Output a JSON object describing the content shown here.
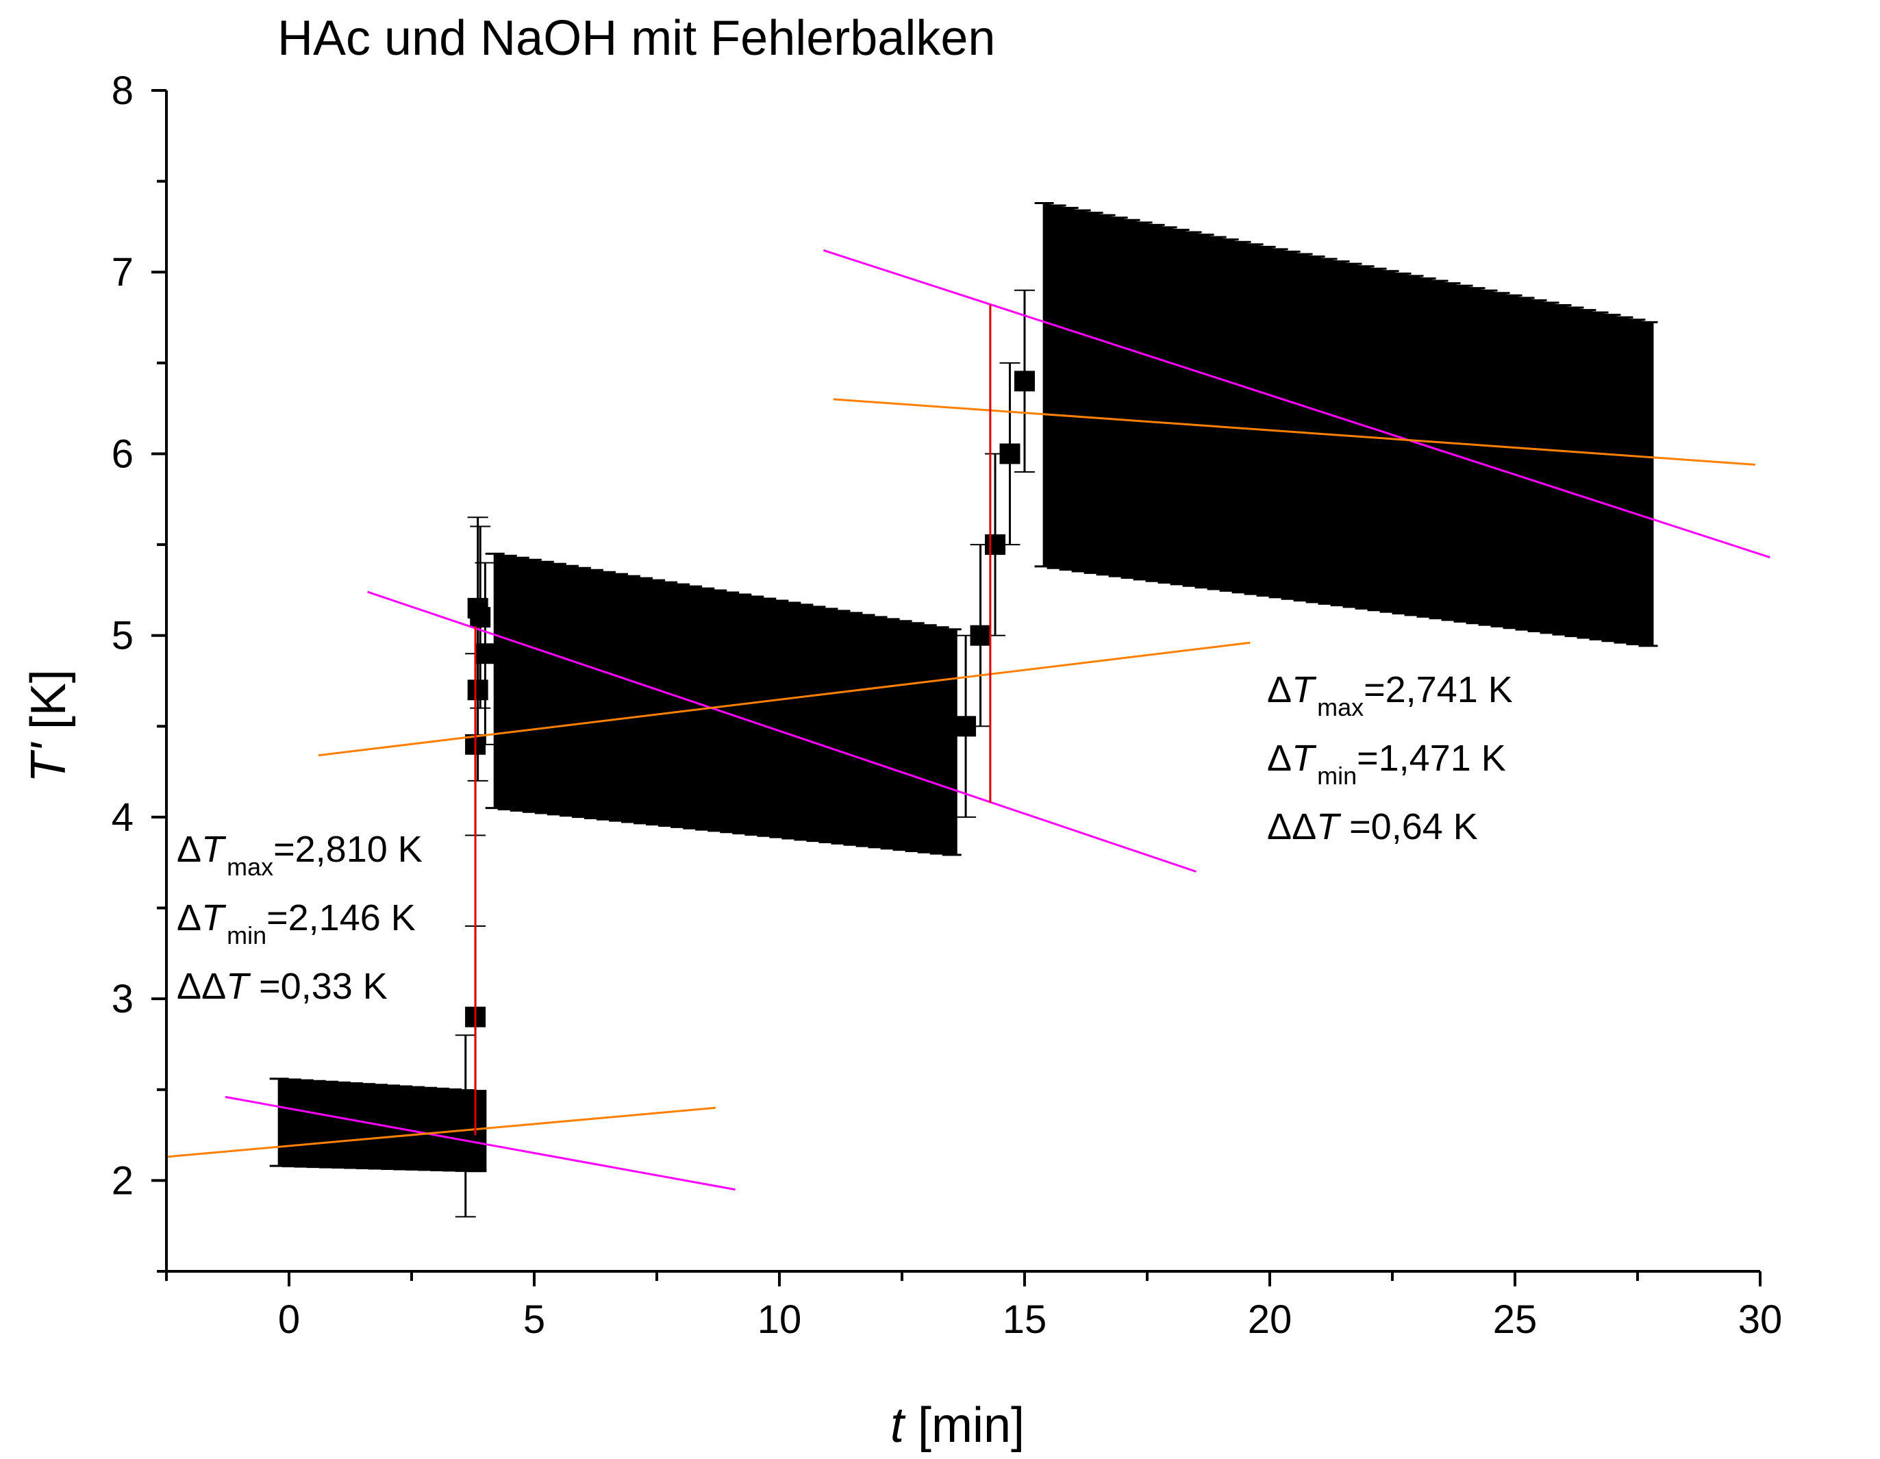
{
  "chart_data": {
    "type": "scatter",
    "title": "HAc und NaOH mit Fehlerbalken",
    "xlabel": {
      "var": "t",
      "unit": " [min]"
    },
    "ylabel": {
      "var": "T'",
      "unit": " [K]"
    },
    "xlim": [
      -2.5,
      30
    ],
    "ylim": [
      1.5,
      8
    ],
    "xticks": [
      0,
      5,
      10,
      15,
      20,
      25,
      30
    ],
    "yticks": [
      2,
      3,
      4,
      5,
      6,
      7,
      8
    ],
    "grid": false,
    "legend": "none",
    "colors": {
      "data": "#000000",
      "regression": "#ff00ff",
      "mean_line": "#ff8000",
      "step_line": "#e00000"
    },
    "segments": [
      {
        "name": "",
        "x_start": -0.2,
        "x_end": 4.0,
        "y_center_start": 2.32,
        "y_center_end": 2.27,
        "error_start": 0.24,
        "error_end": 0.22
      },
      {
        "name": "",
        "x_start": 4.2,
        "x_end": 13.6,
        "y_center_start": 4.75,
        "y_center_end": 4.41,
        "error_start": 0.7,
        "error_end": 0.62
      },
      {
        "name": "",
        "x_start": 15.4,
        "x_end": 27.8,
        "y_center_start": 6.38,
        "y_center_end": 5.83,
        "error_start": 1.0,
        "error_end": 0.89
      }
    ],
    "rise_points": [
      {
        "x": 3.6,
        "y": 2.3
      },
      {
        "x": 3.8,
        "y": 2.9
      },
      {
        "x": 3.8,
        "y": 4.4
      },
      {
        "x": 3.85,
        "y": 4.7
      },
      {
        "x": 3.85,
        "y": 5.15
      },
      {
        "x": 3.9,
        "y": 5.1
      },
      {
        "x": 4.0,
        "y": 4.9
      },
      {
        "x": 13.8,
        "y": 4.5
      },
      {
        "x": 14.1,
        "y": 5.0
      },
      {
        "x": 14.4,
        "y": 5.5
      },
      {
        "x": 14.7,
        "y": 6.0
      },
      {
        "x": 15.0,
        "y": 6.4
      }
    ],
    "fit_lines": [
      {
        "type": "regression",
        "x1": -1.3,
        "y1": 2.46,
        "x2": 9.1,
        "y2": 1.95
      },
      {
        "type": "mean",
        "x1": -2.5,
        "y1": 2.13,
        "x2": 8.7,
        "y2": 2.4
      },
      {
        "type": "regression",
        "x1": 1.6,
        "y1": 5.24,
        "x2": 18.5,
        "y2": 3.7
      },
      {
        "type": "mean",
        "x1": 0.6,
        "y1": 4.34,
        "x2": 19.6,
        "y2": 4.96
      },
      {
        "type": "regression",
        "x1": 10.9,
        "y1": 7.12,
        "x2": 30.2,
        "y2": 5.43
      },
      {
        "type": "mean",
        "x1": 11.1,
        "y1": 6.3,
        "x2": 29.9,
        "y2": 5.94
      }
    ],
    "step_lines": [
      {
        "x": 3.8,
        "y1": 2.25,
        "y2": 5.05
      },
      {
        "x": 14.3,
        "y1": 4.08,
        "y2": 6.82
      }
    ],
    "annotations": [
      {
        "lines": [
          {
            "pre": "Δ",
            "var": "T",
            "sub": "max",
            "val": "=2,810 K"
          },
          {
            "pre": "Δ",
            "var": "T",
            "sub": "min",
            "val": "=2,146 K"
          },
          {
            "pre": "ΔΔ",
            "var": "T",
            "sub": "",
            "val": " =0,33 K"
          }
        ]
      },
      {
        "lines": [
          {
            "pre": "Δ",
            "var": "T",
            "sub": "max",
            "val": "=2,741 K"
          },
          {
            "pre": "Δ",
            "var": "T",
            "sub": "min",
            "val": "=1,471 K"
          },
          {
            "pre": "ΔΔ",
            "var": "T",
            "sub": "",
            "val": " =0,64 K"
          }
        ]
      }
    ]
  }
}
